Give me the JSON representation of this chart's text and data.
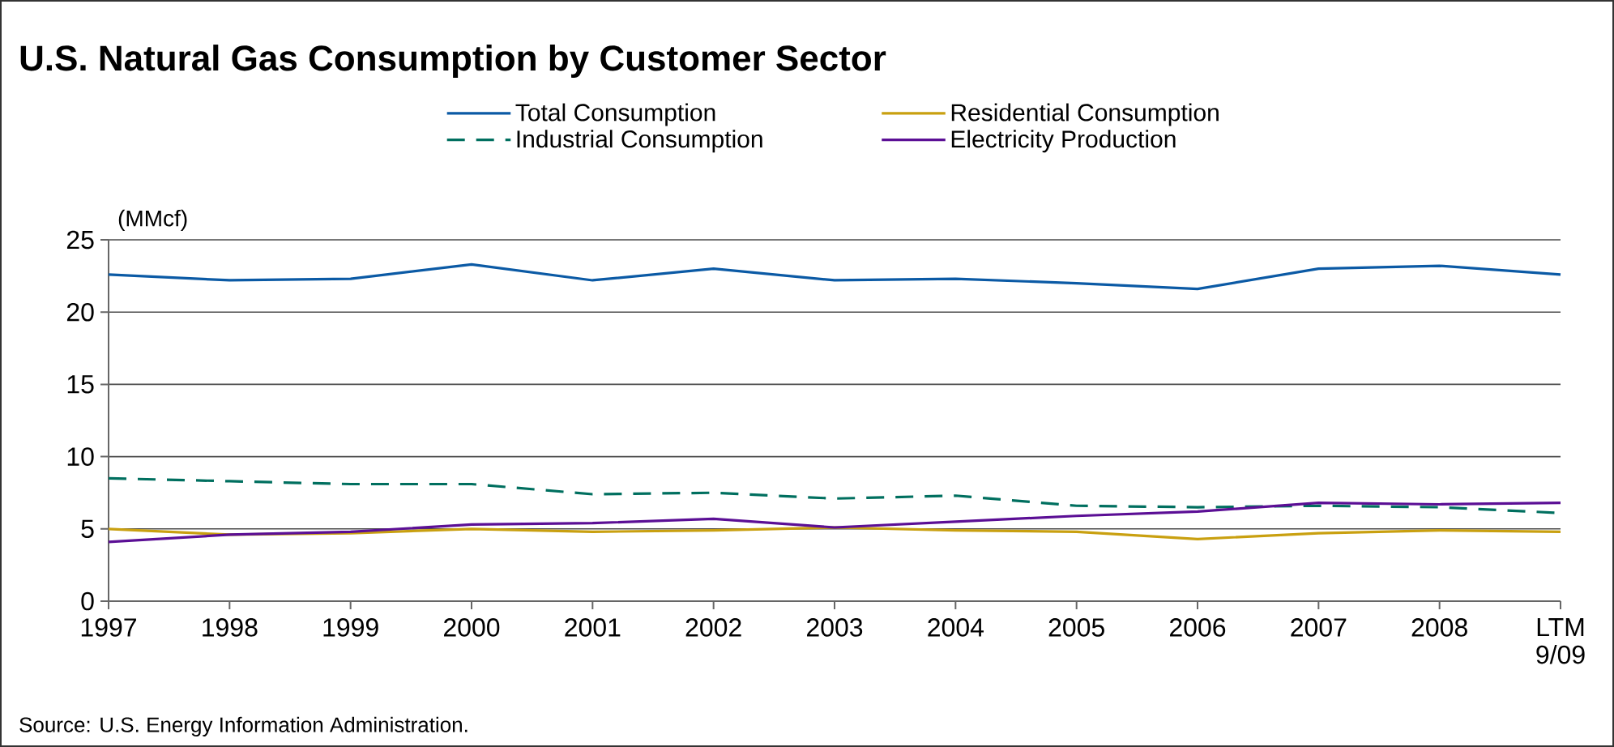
{
  "chart_data": {
    "type": "line",
    "title": "U.S. Natural Gas Consumption by Customer Sector",
    "ylabel": "(MMcf)",
    "categories": [
      "1997",
      "1998",
      "1999",
      "2000",
      "2001",
      "2002",
      "2003",
      "2004",
      "2005",
      "2006",
      "2007",
      "2008",
      "LTM 9/09"
    ],
    "series": [
      {
        "name": "Total Consumption",
        "color": "#0b5aa5",
        "values": [
          22.6,
          22.2,
          22.3,
          23.3,
          22.2,
          23.0,
          22.2,
          22.3,
          22.0,
          21.6,
          23.0,
          23.2,
          22.6
        ]
      },
      {
        "name": "Residential Consumption",
        "color": "#c9a010",
        "values": [
          5.0,
          4.6,
          4.7,
          5.0,
          4.8,
          4.9,
          5.1,
          4.9,
          4.8,
          4.3,
          4.7,
          4.9,
          4.8
        ]
      },
      {
        "name": "Industrial Consumption",
        "color": "#006f5f",
        "line_style": "dashed",
        "values": [
          8.5,
          8.3,
          8.1,
          8.1,
          7.4,
          7.5,
          7.1,
          7.3,
          6.6,
          6.5,
          6.6,
          6.5,
          6.1
        ]
      },
      {
        "name": "Electricity Production",
        "color": "#5b0f95",
        "values": [
          4.1,
          4.6,
          4.8,
          5.3,
          5.4,
          5.7,
          5.1,
          5.5,
          5.9,
          6.2,
          6.8,
          6.7,
          6.8
        ]
      }
    ],
    "ylim": [
      0,
      25
    ],
    "yticks": [
      0,
      5,
      10,
      15,
      20,
      25
    ],
    "grid": "y",
    "legend": "top",
    "marker": "none",
    "line_style": "solid",
    "annotations": [
      "Source: U.S. Energy Information Administration."
    ]
  }
}
